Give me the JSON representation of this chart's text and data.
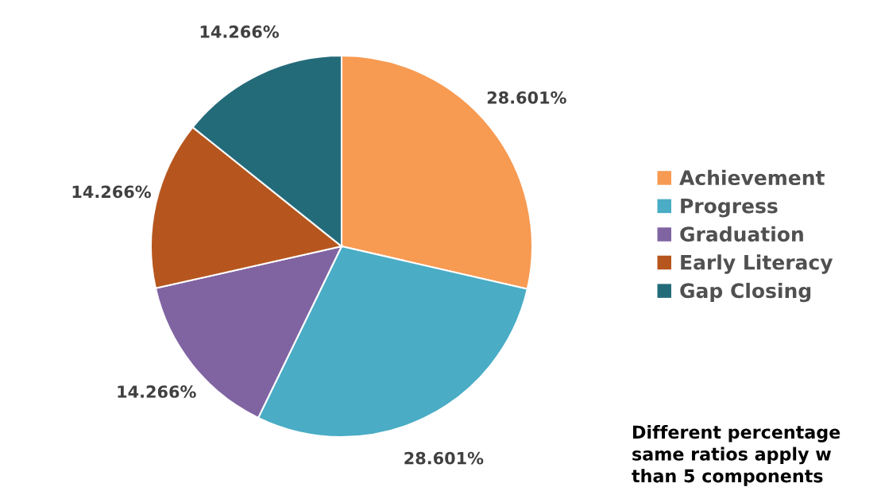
{
  "chart_data": {
    "type": "pie",
    "categories": [
      "Achievement",
      "Progress",
      "Graduation",
      "Early Literacy",
      "Gap Closing"
    ],
    "values": [
      28.601,
      28.601,
      14.266,
      14.266,
      14.266
    ],
    "value_labels": [
      "28.601%",
      "28.601%",
      "14.266%",
      "14.266%",
      "14.266%"
    ],
    "colors": [
      "#f79a52",
      "#4aacc5",
      "#8064a2",
      "#b6561e",
      "#246b7a"
    ],
    "legend": "right",
    "annotations": [
      "Different percentage\nsame ratios apply w\nthan 5 components"
    ]
  }
}
